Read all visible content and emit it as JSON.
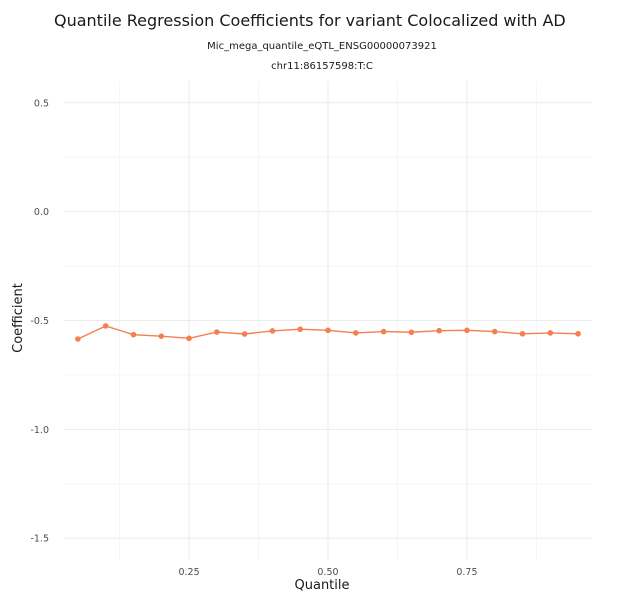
{
  "chart_data": {
    "type": "line",
    "title": "Quantile Regression Coefficients for variant Colocalized with AD",
    "subtitles": [
      "Mic_mega_quantile_eQTL_ENSG00000073921",
      "chr11:86157598:T:C"
    ],
    "xlabel": "Quantile",
    "ylabel": "Coefficient",
    "xlim": [
      0.025,
      0.975
    ],
    "ylim": [
      -1.6,
      0.6
    ],
    "x_ticks": [
      0.25,
      0.5,
      0.75
    ],
    "x_tick_labels": [
      "0.25",
      "0.50",
      "0.75"
    ],
    "y_ticks": [
      0.5,
      0.0,
      -0.5,
      -1.0,
      -1.5
    ],
    "y_tick_labels": [
      "0.5",
      "0.0",
      "-0.5",
      "-1.0",
      "-1.5"
    ],
    "grid": true,
    "color": "#f47f4f",
    "x": [
      0.05,
      0.1,
      0.15,
      0.2,
      0.25,
      0.3,
      0.35,
      0.4,
      0.45,
      0.5,
      0.55,
      0.6,
      0.65,
      0.7,
      0.75,
      0.8,
      0.85,
      0.9,
      0.95
    ],
    "y": [
      -0.585,
      -0.525,
      -0.565,
      -0.572,
      -0.582,
      -0.553,
      -0.562,
      -0.548,
      -0.54,
      -0.545,
      -0.557,
      -0.551,
      -0.554,
      -0.547,
      -0.545,
      -0.551,
      -0.561,
      -0.557,
      -0.561
    ]
  }
}
